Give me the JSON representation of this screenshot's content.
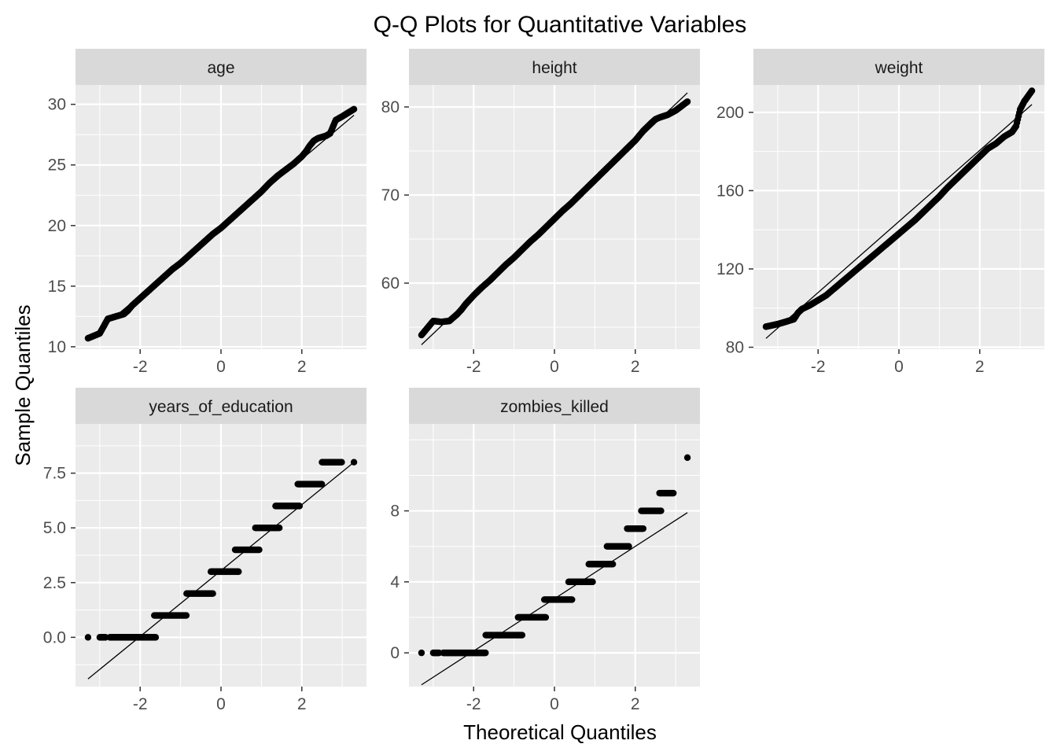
{
  "title": "Q-Q Plots for Quantitative Variables",
  "xlabel": "Theoretical Quantiles",
  "ylabel": "Sample Quantiles",
  "colors": {
    "strip": "#d9d9d9",
    "panel": "#ebebeb",
    "grid": "#ffffff",
    "point": "#000000",
    "line": "#000000",
    "tick_text": "#4d4d4d",
    "strip_text": "#1a1a1a"
  },
  "chart_data": [
    {
      "type": "scatter",
      "panel": "age",
      "xlim": [
        -3.6,
        3.6
      ],
      "ylim": [
        9.8,
        31.6
      ],
      "x_ticks": [
        -2,
        0,
        2
      ],
      "x_tick_labels": [
        "-2",
        "0",
        "2"
      ],
      "y_ticks": [
        10,
        15,
        20,
        25,
        30
      ],
      "y_tick_labels": [
        "10",
        "15",
        "20",
        "25",
        "30"
      ],
      "reference_line": {
        "x": [
          -3.29,
          3.29
        ],
        "y": [
          10.6,
          29.1
        ]
      },
      "points": [
        [
          -3.29,
          10.7
        ],
        [
          -3.0,
          11.1
        ],
        [
          -2.8,
          12.3
        ],
        [
          -2.6,
          12.5
        ],
        [
          -2.5,
          12.6
        ],
        [
          -2.4,
          12.7
        ],
        [
          -2.3,
          13.0
        ],
        [
          -2.2,
          13.4
        ],
        [
          -2.0,
          14.0
        ],
        [
          -1.8,
          14.6
        ],
        [
          -1.6,
          15.2
        ],
        [
          -1.4,
          15.8
        ],
        [
          -1.2,
          16.4
        ],
        [
          -1.0,
          16.9
        ],
        [
          -0.8,
          17.5
        ],
        [
          -0.6,
          18.1
        ],
        [
          -0.4,
          18.7
        ],
        [
          -0.2,
          19.3
        ],
        [
          0.0,
          19.8
        ],
        [
          0.2,
          20.4
        ],
        [
          0.4,
          21.0
        ],
        [
          0.6,
          21.6
        ],
        [
          0.8,
          22.2
        ],
        [
          1.0,
          22.8
        ],
        [
          1.2,
          23.5
        ],
        [
          1.4,
          24.1
        ],
        [
          1.6,
          24.6
        ],
        [
          1.8,
          25.1
        ],
        [
          2.0,
          25.7
        ],
        [
          2.1,
          26.1
        ],
        [
          2.2,
          26.6
        ],
        [
          2.3,
          27.0
        ],
        [
          2.4,
          27.2
        ],
        [
          2.5,
          27.3
        ],
        [
          2.6,
          27.4
        ],
        [
          2.7,
          27.6
        ],
        [
          2.84,
          28.7
        ],
        [
          3.0,
          29.0
        ],
        [
          3.29,
          29.6
        ]
      ]
    },
    {
      "type": "scatter",
      "panel": "height",
      "xlim": [
        -3.6,
        3.6
      ],
      "ylim": [
        52.5,
        82.5
      ],
      "x_ticks": [
        -2,
        0,
        2
      ],
      "x_tick_labels": [
        "-2",
        "0",
        "2"
      ],
      "y_ticks": [
        60,
        70,
        80
      ],
      "y_tick_labels": [
        "60",
        "70",
        "80"
      ],
      "reference_line": {
        "x": [
          -3.29,
          3.29
        ],
        "y": [
          53.0,
          81.6
        ]
      },
      "points": [
        [
          -3.29,
          54.1
        ],
        [
          -3.0,
          55.7
        ],
        [
          -2.8,
          55.6
        ],
        [
          -2.6,
          55.7
        ],
        [
          -2.5,
          56.1
        ],
        [
          -2.4,
          56.5
        ],
        [
          -2.3,
          57.0
        ],
        [
          -2.2,
          57.6
        ],
        [
          -2.0,
          58.6
        ],
        [
          -1.8,
          59.5
        ],
        [
          -1.6,
          60.3
        ],
        [
          -1.4,
          61.2
        ],
        [
          -1.2,
          62.1
        ],
        [
          -1.0,
          62.9
        ],
        [
          -0.8,
          63.8
        ],
        [
          -0.6,
          64.7
        ],
        [
          -0.4,
          65.5
        ],
        [
          -0.2,
          66.4
        ],
        [
          0.0,
          67.3
        ],
        [
          0.2,
          68.2
        ],
        [
          0.4,
          69.0
        ],
        [
          0.6,
          69.9
        ],
        [
          0.8,
          70.8
        ],
        [
          1.0,
          71.7
        ],
        [
          1.2,
          72.6
        ],
        [
          1.4,
          73.5
        ],
        [
          1.6,
          74.4
        ],
        [
          1.8,
          75.3
        ],
        [
          2.0,
          76.2
        ],
        [
          2.2,
          77.3
        ],
        [
          2.4,
          78.2
        ],
        [
          2.5,
          78.6
        ],
        [
          2.6,
          78.8
        ],
        [
          2.8,
          79.1
        ],
        [
          3.0,
          79.6
        ],
        [
          3.29,
          80.6
        ]
      ]
    },
    {
      "type": "scatter",
      "panel": "weight",
      "xlim": [
        -3.6,
        3.6
      ],
      "ylim": [
        79,
        214
      ],
      "x_ticks": [
        -2,
        0,
        2
      ],
      "x_tick_labels": [
        "-2",
        "0",
        "2"
      ],
      "y_ticks": [
        80,
        120,
        160,
        200
      ],
      "y_tick_labels": [
        "80",
        "120",
        "160",
        "200"
      ],
      "reference_line": {
        "x": [
          -3.29,
          3.29
        ],
        "y": [
          84.5,
          204.0
        ]
      },
      "points": [
        [
          -3.29,
          90.5
        ],
        [
          -3.0,
          91.8
        ],
        [
          -2.8,
          93.0
        ],
        [
          -2.6,
          94.3
        ],
        [
          -2.5,
          97.5
        ],
        [
          -2.4,
          99.5
        ],
        [
          -2.2,
          101.5
        ],
        [
          -2.0,
          104.0
        ],
        [
          -1.8,
          106.5
        ],
        [
          -1.6,
          110.0
        ],
        [
          -1.4,
          113.5
        ],
        [
          -1.2,
          117.0
        ],
        [
          -1.0,
          120.5
        ],
        [
          -0.8,
          124.0
        ],
        [
          -0.6,
          127.5
        ],
        [
          -0.4,
          131.0
        ],
        [
          -0.2,
          134.5
        ],
        [
          0.0,
          138.0
        ],
        [
          0.2,
          141.5
        ],
        [
          0.4,
          145.0
        ],
        [
          0.6,
          149.0
        ],
        [
          0.8,
          153.0
        ],
        [
          1.0,
          157.0
        ],
        [
          1.2,
          161.5
        ],
        [
          1.4,
          165.5
        ],
        [
          1.6,
          169.5
        ],
        [
          1.8,
          173.5
        ],
        [
          2.0,
          177.5
        ],
        [
          2.2,
          181.5
        ],
        [
          2.4,
          184.0
        ],
        [
          2.6,
          187.5
        ],
        [
          2.8,
          190.0
        ],
        [
          2.9,
          193.0
        ],
        [
          3.0,
          201.5
        ],
        [
          3.1,
          205.5
        ],
        [
          3.29,
          211.0
        ]
      ]
    },
    {
      "type": "scatter",
      "panel": "years_of_education",
      "xlim": [
        -3.6,
        3.6
      ],
      "ylim": [
        -2.25,
        9.75
      ],
      "x_ticks": [
        -2,
        0,
        2
      ],
      "x_tick_labels": [
        "-2",
        "0",
        "2"
      ],
      "y_ticks": [
        0,
        2.5,
        5,
        7.5
      ],
      "y_tick_labels": [
        "0.0",
        "2.5",
        "5.0",
        "7.5"
      ],
      "reference_line": {
        "x": [
          -3.29,
          3.29
        ],
        "y": [
          -1.9,
          8.0
        ]
      },
      "step_runs": [
        [
          -3.29,
          -3.29,
          0
        ],
        [
          -3.0,
          -2.85,
          0
        ],
        [
          -2.75,
          -1.6,
          0
        ],
        [
          -1.65,
          -0.85,
          1
        ],
        [
          -0.85,
          -0.2,
          2
        ],
        [
          -0.25,
          0.45,
          3
        ],
        [
          0.35,
          0.95,
          4
        ],
        [
          0.85,
          1.45,
          5
        ],
        [
          1.35,
          1.95,
          6
        ],
        [
          1.9,
          2.5,
          7
        ],
        [
          2.5,
          3.0,
          8
        ],
        [
          3.29,
          3.29,
          8
        ]
      ]
    },
    {
      "type": "scatter",
      "panel": "zombies_killed",
      "xlim": [
        -3.6,
        3.6
      ],
      "ylim": [
        -1.9,
        12.9
      ],
      "x_ticks": [
        -2,
        0,
        2
      ],
      "x_tick_labels": [
        "-2",
        "0",
        "2"
      ],
      "y_ticks": [
        0,
        4,
        8
      ],
      "y_tick_labels": [
        "0",
        "4",
        "8"
      ],
      "reference_line": {
        "x": [
          -3.29,
          3.29
        ],
        "y": [
          -1.8,
          7.9
        ]
      },
      "step_runs": [
        [
          -3.29,
          -3.29,
          0
        ],
        [
          -3.0,
          -2.85,
          0
        ],
        [
          -2.75,
          -1.7,
          0
        ],
        [
          -1.7,
          -0.8,
          1
        ],
        [
          -0.9,
          -0.2,
          2
        ],
        [
          -0.25,
          0.45,
          3
        ],
        [
          0.35,
          0.95,
          4
        ],
        [
          0.85,
          1.45,
          5
        ],
        [
          1.3,
          1.85,
          6
        ],
        [
          1.8,
          2.2,
          7
        ],
        [
          2.15,
          2.65,
          8
        ],
        [
          2.6,
          2.95,
          9
        ],
        [
          3.29,
          3.29,
          11
        ]
      ]
    }
  ]
}
